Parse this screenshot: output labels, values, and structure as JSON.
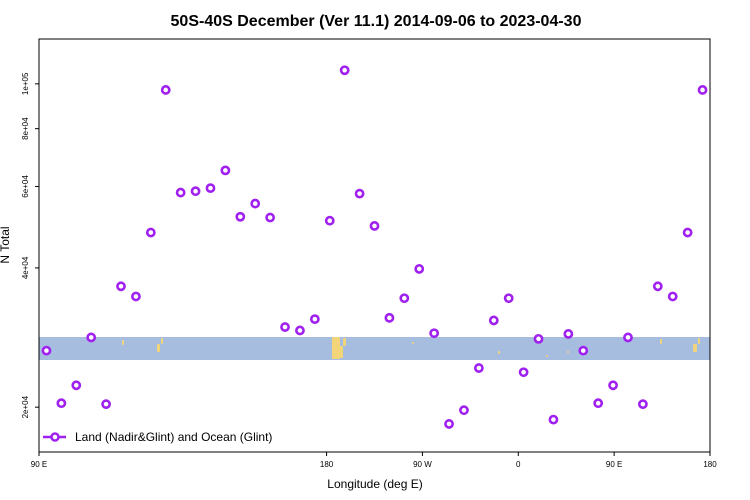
{
  "chart_data": {
    "type": "scatter",
    "title": "50S-40S December (Ver 11.1)   2014-09-06 to 2023-04-30",
    "xlabel": "Longitude (deg E)",
    "ylabel": "N Total",
    "x_axis_kind": "longitude_wrapped",
    "x_unwrapped_range": [
      -90,
      180
    ],
    "x_ticks": [
      {
        "value": -90,
        "label": "90 E"
      },
      {
        "value": 180,
        "label": "180"
      },
      {
        "value": 270,
        "label": "90 W"
      },
      {
        "value": 360,
        "label": "0"
      },
      {
        "value": 450,
        "label": "90 E"
      },
      {
        "value": 540,
        "label": "180"
      }
    ],
    "xlim": [
      -90,
      540
    ],
    "y_scale": "log",
    "ylim": [
      16000,
      125000
    ],
    "y_ticks": [
      {
        "value": 20000,
        "label": "2e+04"
      },
      {
        "value": 40000,
        "label": "4e+04"
      },
      {
        "value": 60000,
        "label": "6e+04"
      },
      {
        "value": 80000,
        "label": "8e+04"
      },
      {
        "value": 100000,
        "label": "1e+05"
      }
    ],
    "series": [
      {
        "name": "Land (Nadir&Glint) and Ocean (Glint)",
        "color": "#a020f0",
        "marker": "open-circle",
        "points": [
          {
            "x": -83,
            "y": 26500
          },
          {
            "x": -69,
            "y": 20400
          },
          {
            "x": -55,
            "y": 22300
          },
          {
            "x": -41,
            "y": 28300
          },
          {
            "x": -27,
            "y": 20300
          },
          {
            "x": -13,
            "y": 36500
          },
          {
            "x": 1,
            "y": 34700
          },
          {
            "x": 15,
            "y": 47700
          },
          {
            "x": 29,
            "y": 97000
          },
          {
            "x": 43,
            "y": 58200
          },
          {
            "x": 57,
            "y": 58600
          },
          {
            "x": 71,
            "y": 59500
          },
          {
            "x": 85,
            "y": 65000
          },
          {
            "x": 99,
            "y": 51600
          },
          {
            "x": 113,
            "y": 55100
          },
          {
            "x": 127,
            "y": 51400
          },
          {
            "x": 141,
            "y": 29800
          },
          {
            "x": 155,
            "y": 29300
          },
          {
            "x": 169,
            "y": 31000
          },
          {
            "x": 183,
            "y": 50600
          },
          {
            "x": 197,
            "y": 107000
          },
          {
            "x": 211,
            "y": 57900
          },
          {
            "x": 225,
            "y": 49300
          },
          {
            "x": 239,
            "y": 31200
          },
          {
            "x": 253,
            "y": 34400
          },
          {
            "x": 267,
            "y": 39800
          },
          {
            "x": 281,
            "y": 28900
          },
          {
            "x": 295,
            "y": 18400
          },
          {
            "x": 309,
            "y": 19700
          },
          {
            "x": 323,
            "y": 24300
          },
          {
            "x": 337,
            "y": 30800
          },
          {
            "x": 351,
            "y": 34400
          },
          {
            "x": 365,
            "y": 23800
          },
          {
            "x": 379,
            "y": 28100
          },
          {
            "x": 393,
            "y": 18800
          },
          {
            "x": 407,
            "y": 28800
          },
          {
            "x": 421,
            "y": 26500
          },
          {
            "x": 435,
            "y": 20400
          },
          {
            "x": 449,
            "y": 22300
          },
          {
            "x": 463,
            "y": 28300
          },
          {
            "x": 477,
            "y": 20300
          },
          {
            "x": 491,
            "y": 36500
          },
          {
            "x": 505,
            "y": 34700
          },
          {
            "x": 519,
            "y": 47700
          },
          {
            "x": 533,
            "y": 97000
          }
        ]
      }
    ],
    "legend_position": "bottom-left",
    "grid": false,
    "map_band": {
      "ocean_color": "#a6bde0",
      "land_color": "#f2d479",
      "description": "longitude map strip showing 50S-40S latitude band"
    }
  }
}
